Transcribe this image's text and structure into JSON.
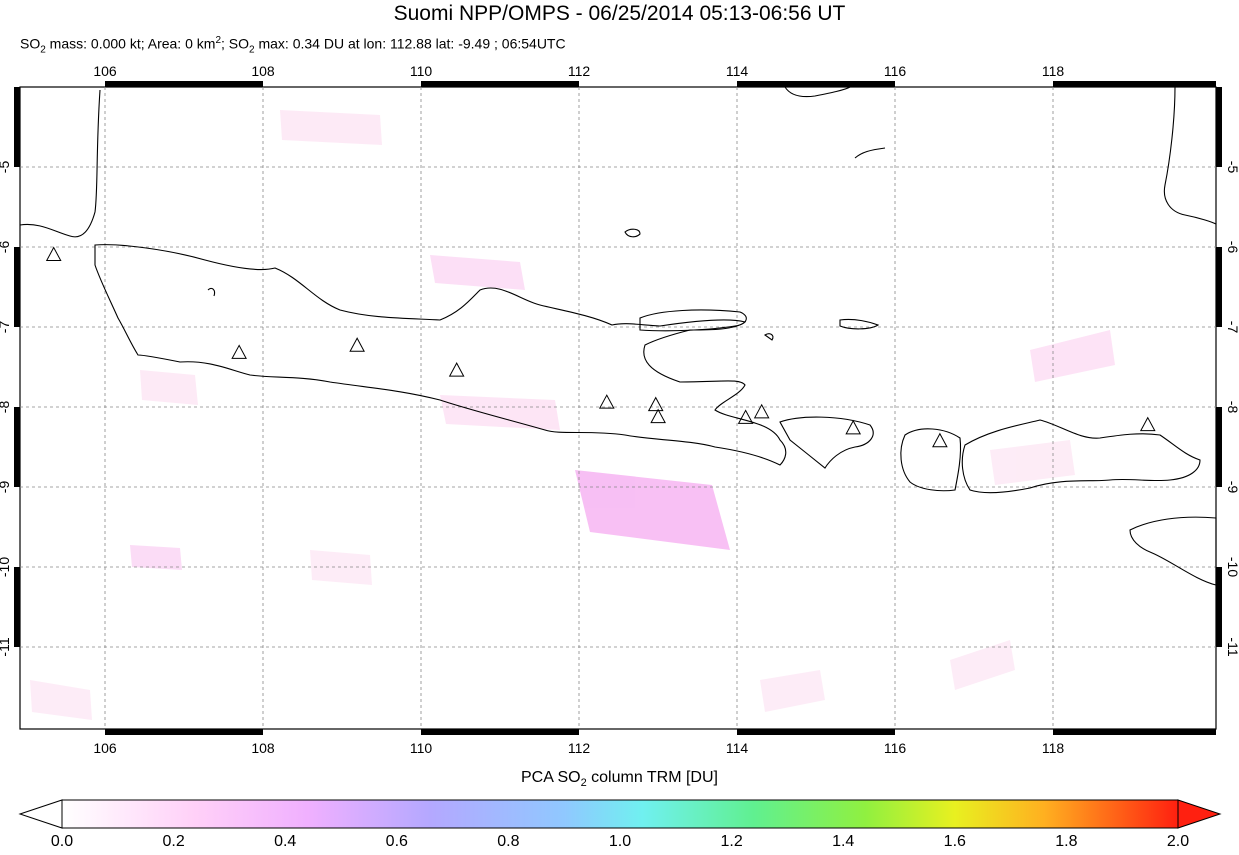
{
  "title": "Suomi NPP/OMPS - 06/25/2014 05:13-06:56 UT",
  "subtitle": {
    "so2_mass_label": "SO",
    "so2_mass_rest": " mass: 0.000 kt; Area: 0 km",
    "area_rest": "; SO",
    "max_rest": " max: 0.34 DU at lon: 112.88 lat: -9.49 ; 06:54UTC",
    "sub2": "2",
    "sup2": "2"
  },
  "map": {
    "lon_ticks": [
      "106",
      "108",
      "110",
      "112",
      "114",
      "116",
      "118"
    ],
    "lat_ticks": [
      "-5",
      "-6",
      "-7",
      "-8",
      "-9",
      "-10",
      "-11"
    ],
    "lon_range": [
      105,
      119.9
    ],
    "lat_range": [
      -12,
      -4
    ]
  },
  "volcanoes": [
    {
      "lon": 105.42,
      "lat": -6.1
    },
    {
      "lon": 107.73,
      "lat": -7.32
    },
    {
      "lon": 109.2,
      "lat": -7.23
    },
    {
      "lon": 110.44,
      "lat": -7.54
    },
    {
      "lon": 112.31,
      "lat": -7.94
    },
    {
      "lon": 112.92,
      "lat": -7.97
    },
    {
      "lon": 112.95,
      "lat": -8.12
    },
    {
      "lon": 114.04,
      "lat": -8.13
    },
    {
      "lon": 114.24,
      "lat": -8.06
    },
    {
      "lon": 115.38,
      "lat": -8.26
    },
    {
      "lon": 116.46,
      "lat": -8.42
    },
    {
      "lon": 119.05,
      "lat": -8.22
    }
  ],
  "colorbar": {
    "title_prefix": "PCA SO",
    "title_sub": "2",
    "title_suffix": " column TRM [DU]",
    "labels": [
      "0.0",
      "0.2",
      "0.4",
      "0.6",
      "0.8",
      "1.0",
      "1.2",
      "1.4",
      "1.6",
      "1.8",
      "2.0"
    ],
    "colors": [
      "#ffffff",
      "#ffd0ff",
      "#b0a0ff",
      "#6fd0ff",
      "#60ff80",
      "#c8ff40",
      "#ffd020",
      "#ff8010",
      "#ff1000"
    ]
  }
}
